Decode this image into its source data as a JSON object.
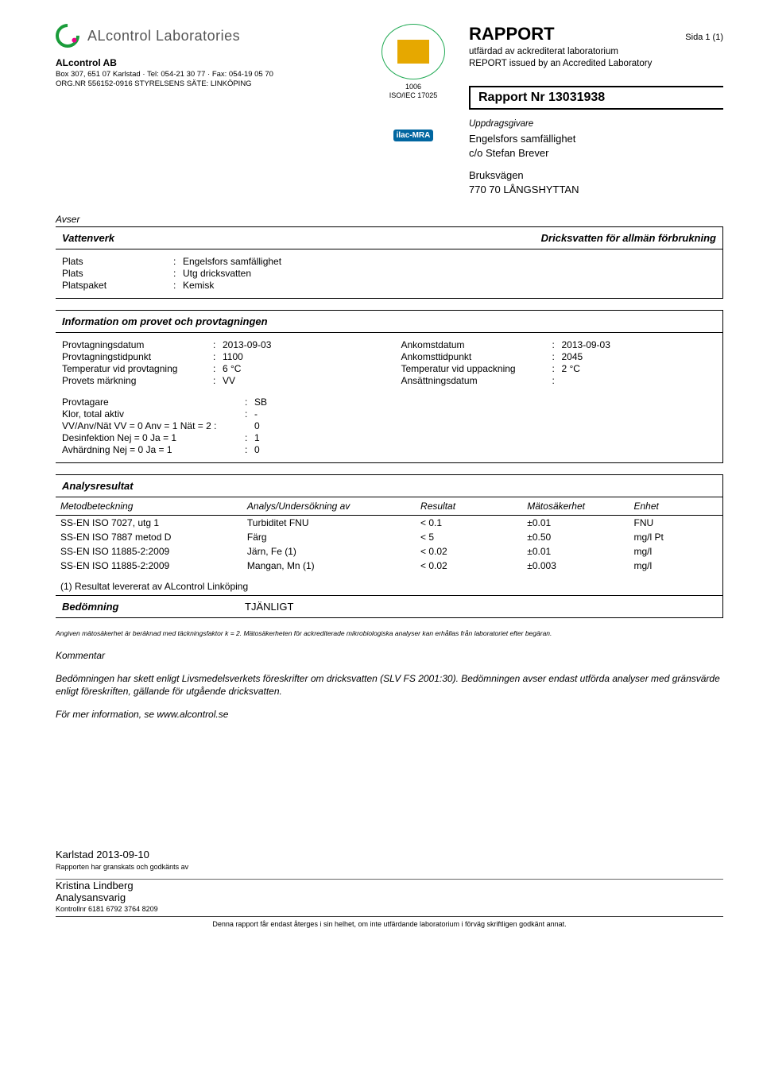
{
  "lab_name": "ALcontrol Laboratories",
  "company": {
    "name": "ALcontrol AB",
    "address_line": "Box 307, 651 07 Karlstad · Tel: 054-21 30 77 · Fax: 054-19 05 70",
    "org_line": "ORG.NR 556152-0916 STYRELSENS SÄTE: LINKÖPING"
  },
  "accred": {
    "code": "1006",
    "standard": "ISO/IEC 17025",
    "ilac": "ilac-MRA"
  },
  "report": {
    "title": "RAPPORT",
    "page": "Sida 1 (1)",
    "sub1": "utfärdad av ackrediterat laboratorium",
    "sub2": "REPORT issued by an Accredited Laboratory",
    "number_label": "Rapport Nr 13031938"
  },
  "client": {
    "label": "Uppdragsgivare",
    "name": "Engelsfors samfällighet",
    "co": "c/o Stefan Brever",
    "addr1": "Bruksvägen",
    "addr2": "770 70 LÅNGSHYTTAN"
  },
  "avser_label": "Avser",
  "vattenverk": {
    "title_left": "Vattenverk",
    "title_right": "Dricksvatten för allmän förbrukning",
    "rows": [
      {
        "k": "Plats",
        "v": "Engelsfors samfällighet"
      },
      {
        "k": "Plats",
        "v": "Utg dricksvatten"
      },
      {
        "k": "Platspaket",
        "v": "Kemisk"
      }
    ]
  },
  "provinfo": {
    "title": "Information om provet och provtagningen",
    "left": [
      {
        "k": "Provtagningsdatum",
        "v": "2013-09-03"
      },
      {
        "k": "Provtagningstidpunkt",
        "v": "1100"
      },
      {
        "k": "Temperatur vid provtagning",
        "v": "6 °C"
      },
      {
        "k": "Provets märkning",
        "v": "VV"
      }
    ],
    "right": [
      {
        "k": "Ankomstdatum",
        "v": "2013-09-03"
      },
      {
        "k": "Ankomsttidpunkt",
        "v": "2045"
      },
      {
        "k": "Temperatur vid uppackning",
        "v": "2 °C"
      },
      {
        "k": "Ansättningsdatum",
        "v": ""
      }
    ],
    "extra": [
      {
        "k": "Provtagare",
        "v": "SB"
      },
      {
        "k": "Klor, total aktiv",
        "v": "-"
      },
      {
        "k": "VV/Anv/Nät VV = 0 Anv = 1 Nät = 2 :",
        "v": "0"
      },
      {
        "k": "Desinfektion Nej = 0 Ja = 1",
        "v": "1"
      },
      {
        "k": "Avhärdning Nej = 0 Ja = 1",
        "v": "0"
      }
    ]
  },
  "results": {
    "title": "Analysresultat",
    "headers": {
      "method": "Metodbeteckning",
      "anal": "Analys/Undersökning av",
      "res": "Resultat",
      "unc": "Mätosäkerhet",
      "unit": "Enhet"
    },
    "rows": [
      {
        "method": "SS-EN ISO 7027, utg 1",
        "anal": "Turbiditet FNU",
        "res": "< 0.1",
        "unc": "±0.01",
        "unit": "FNU"
      },
      {
        "method": "SS-EN ISO 7887 metod D",
        "anal": "Färg",
        "res": "< 5",
        "unc": "±0.50",
        "unit": "mg/l Pt"
      },
      {
        "method": "SS-EN ISO 11885-2:2009",
        "anal": "Järn, Fe (1)",
        "res": "< 0.02",
        "unc": "±0.01",
        "unit": "mg/l"
      },
      {
        "method": "SS-EN ISO 11885-2:2009",
        "anal": "Mangan, Mn (1)",
        "res": "< 0.02",
        "unc": "±0.003",
        "unit": "mg/l"
      }
    ],
    "note": "(1)  Resultat levererat av ALcontrol Linköping",
    "assess_label": "Bedömning",
    "assess_val": "TJÄNLIGT"
  },
  "fine_print": "Angiven mätosäkerhet är beräknad med täckningsfaktor k = 2. Mätosäkerheten för ackrediterade mikrobiologiska analyser kan erhållas från laboratoriet efter begäran.",
  "comment": {
    "label": "Kommentar",
    "body1": "Bedömningen har skett enligt Livsmedelsverkets föreskrifter om dricksvatten (SLV FS 2001:30). Bedömningen avser endast utförda analyser med gränsvärde enligt föreskriften, gällande för utgående dricksvatten.",
    "body2": "För mer information, se www.alcontrol.se"
  },
  "signature": {
    "loc_date": "Karlstad 2013-09-10",
    "note": "Rapporten har granskats och godkänts av",
    "name": "Kristina Lindberg",
    "role": "Analysansvarig",
    "ctrl": "Kontrollnr 6181 6792 3764 8209"
  },
  "footer_disclaimer": "Denna rapport får endast återges i sin helhet, om inte utfärdande laboratorium i förväg skriftligen godkänt annat."
}
